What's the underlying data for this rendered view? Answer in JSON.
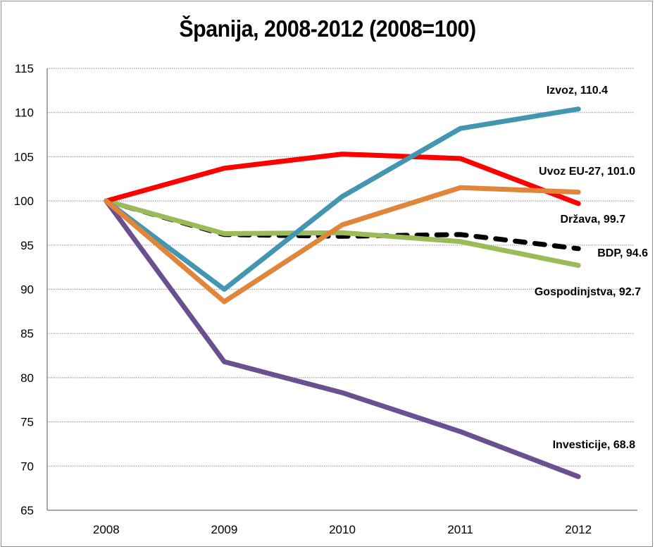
{
  "chart_data": {
    "type": "line",
    "title": "Španija, 2008-2012 (2008=100)",
    "xlabel": "",
    "ylabel": "",
    "categories": [
      "2008",
      "2009",
      "2010",
      "2011",
      "2012"
    ],
    "ylim": [
      65,
      115
    ],
    "yticks": [
      65,
      70,
      75,
      80,
      85,
      90,
      95,
      100,
      105,
      110,
      115
    ],
    "grid": "horizontal dotted",
    "legend": "none (end-of-line data labels)",
    "series": [
      {
        "name": "BDP",
        "color": "#000000",
        "dashed": true,
        "values": [
          100,
          96.2,
          96.0,
          96.2,
          94.6
        ],
        "label": "BDP, 94.6"
      },
      {
        "name": "Gospodinjstva",
        "color": "#9bbb59",
        "dashed": false,
        "values": [
          100,
          96.3,
          96.4,
          95.4,
          92.7
        ],
        "label": "Gospodinjstva, 92.7"
      },
      {
        "name": "Investicije",
        "color": "#6a5090",
        "dashed": false,
        "values": [
          100,
          81.8,
          78.3,
          73.9,
          68.8
        ],
        "label": "Investicije, 68.8"
      },
      {
        "name": "Država",
        "color": "#ff0000",
        "dashed": false,
        "values": [
          100,
          103.7,
          105.3,
          104.8,
          99.7
        ],
        "label": "Država, 99.7"
      },
      {
        "name": "Izvoz",
        "color": "#4396b0",
        "dashed": false,
        "values": [
          100,
          90.0,
          100.5,
          108.2,
          110.4
        ],
        "label": "Izvoz, 110.4"
      },
      {
        "name": "Uvoz EU-27",
        "color": "#e0853a",
        "dashed": false,
        "values": [
          100,
          88.6,
          97.3,
          101.5,
          101.0
        ],
        "label": "Uvoz EU-27, 101.0"
      }
    ]
  }
}
